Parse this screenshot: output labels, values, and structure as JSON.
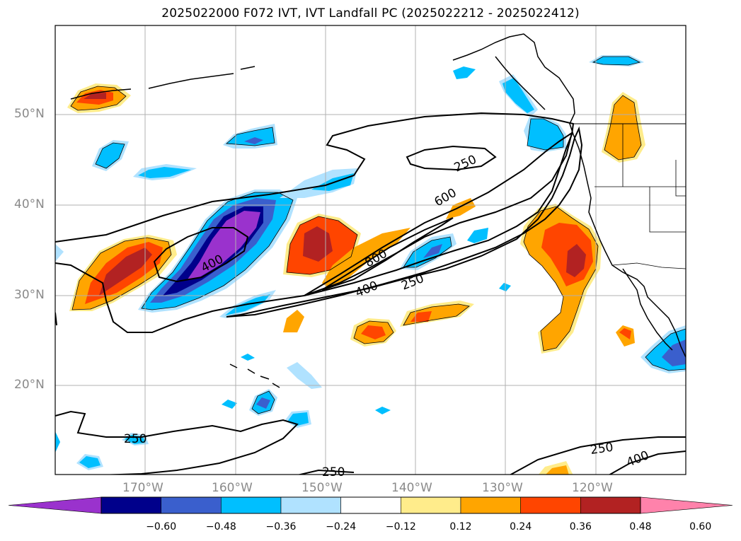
{
  "title": "2025022000 F072 IVT, IVT Landfall PC (2025022212 - 2025022412)",
  "lat_labels": [
    "50°N",
    "40°N",
    "30°N",
    "20°N"
  ],
  "lon_labels": [
    "170°W",
    "160°W",
    "150°W",
    "140°W",
    "130°W",
    "120°W"
  ],
  "contour_labels": [
    "250",
    "600",
    "400",
    "800",
    "400",
    "250",
    "250",
    "250",
    "250",
    "400"
  ],
  "colorbar": {
    "ticks": [
      "−0.60",
      "−0.48",
      "−0.36",
      "−0.24",
      "−0.12",
      "0.12",
      "0.24",
      "0.36",
      "0.48",
      "0.60"
    ],
    "colors": [
      "#9a32cd",
      "#00008b",
      "#3a5fcd",
      "#00bfff",
      "#b0e2ff",
      "#ffffff",
      "#ffec8b",
      "#ffa500",
      "#ff4500",
      "#b22222",
      "#ff82ab"
    ]
  },
  "colors": {
    "grid": "#b0b0b0",
    "coast": "#000000",
    "contour": "#000000",
    "axis_label": "#8a8a8a"
  }
}
